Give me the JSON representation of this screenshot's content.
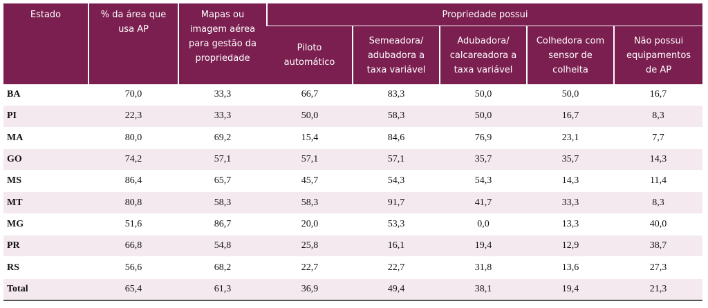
{
  "table": {
    "group_header": "Propriedade possui",
    "columns": [
      "Estado",
      "% da área que usa AP",
      "Mapas ou imagem aérea para gestão da propriedade",
      "Piloto automático",
      "Semeadora/ adubadora a taxa variável",
      "Adubadora/ calcareadora a taxa variável",
      "Colhedora com sensor de colheita",
      "Não possui equipamentos de AP"
    ],
    "rows": [
      [
        "BA",
        "70,0",
        "33,3",
        "66,7",
        "83,3",
        "50,0",
        "50,0",
        "16,7"
      ],
      [
        "PI",
        "22,3",
        "33,3",
        "50,0",
        "58,3",
        "50,0",
        "16,7",
        "8,3"
      ],
      [
        "MA",
        "80,0",
        "69,2",
        "15,4",
        "84,6",
        "76,9",
        "23,1",
        "7,7"
      ],
      [
        "GO",
        "74,2",
        "57,1",
        "57,1",
        "57,1",
        "35,7",
        "35,7",
        "14,3"
      ],
      [
        "MS",
        "86,4",
        "65,7",
        "45,7",
        "54,3",
        "54,3",
        "14,3",
        "11,4"
      ],
      [
        "MT",
        "80,8",
        "58,3",
        "58,3",
        "91,7",
        "41,7",
        "33,3",
        "8,3"
      ],
      [
        "MG",
        "51,6",
        "86,7",
        "20,0",
        "53,3",
        "0,0",
        "13,3",
        "40,0"
      ],
      [
        "PR",
        "66,8",
        "54,8",
        "25,8",
        "16,1",
        "19,4",
        "12,9",
        "38,7"
      ],
      [
        "RS",
        "56,6",
        "68,2",
        "22,7",
        "22,7",
        "31,8",
        "13,6",
        "27,3"
      ],
      [
        "Total",
        "65,4",
        "61,3",
        "36,9",
        "49,4",
        "38,1",
        "19,4",
        "21,3"
      ]
    ]
  }
}
